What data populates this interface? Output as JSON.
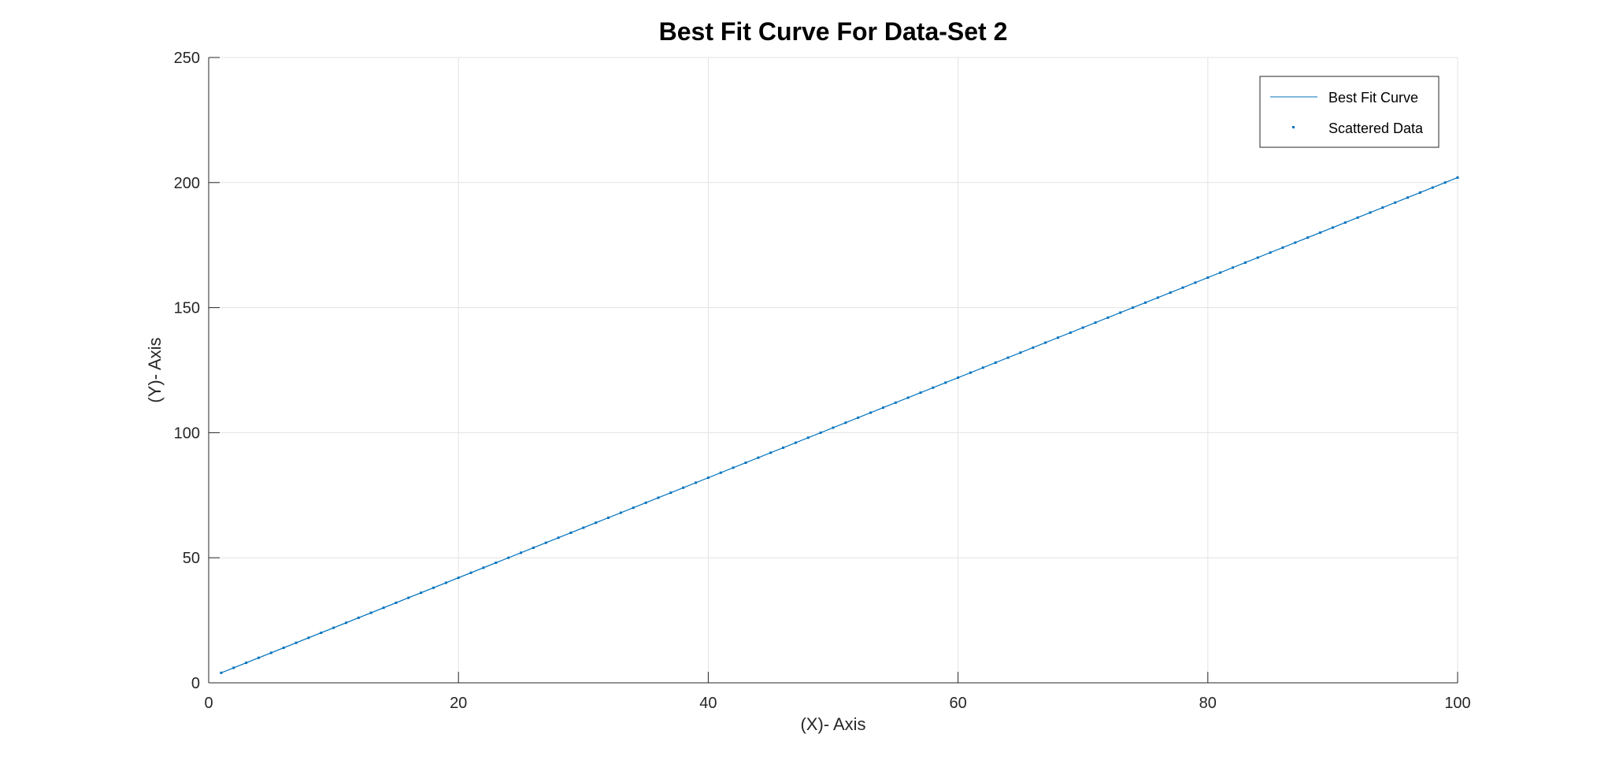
{
  "chart_data": {
    "type": "line",
    "title": "Best Fit Curve For Data-Set 2",
    "xlabel": "(X)-  Axis",
    "ylabel": "(Y)-  Axis",
    "xlim": [
      0,
      100
    ],
    "ylim": [
      0,
      250
    ],
    "xticks": [
      0,
      20,
      40,
      60,
      80,
      100
    ],
    "yticks": [
      0,
      50,
      100,
      150,
      200,
      250
    ],
    "xtick_labels": [
      "0",
      "20",
      "40",
      "60",
      "80",
      "100"
    ],
    "ytick_labels": [
      "0",
      "50",
      "100",
      "150",
      "200",
      "250"
    ],
    "grid": true,
    "legend_position": "top-right",
    "series": [
      {
        "name": "Best Fit Curve",
        "style": "line",
        "color": "#0072BD",
        "x": [
          1,
          100
        ],
        "y": [
          4,
          202
        ]
      },
      {
        "name": "Scattered Data",
        "style": "markers",
        "color": "#0072BD",
        "x": [
          1,
          2,
          3,
          4,
          5,
          6,
          7,
          8,
          9,
          10,
          11,
          12,
          13,
          14,
          15,
          16,
          17,
          18,
          19,
          20,
          21,
          22,
          23,
          24,
          25,
          26,
          27,
          28,
          29,
          30,
          31,
          32,
          33,
          34,
          35,
          36,
          37,
          38,
          39,
          40,
          41,
          42,
          43,
          44,
          45,
          46,
          47,
          48,
          49,
          50,
          51,
          52,
          53,
          54,
          55,
          56,
          57,
          58,
          59,
          60,
          61,
          62,
          63,
          64,
          65,
          66,
          67,
          68,
          69,
          70,
          71,
          72,
          73,
          74,
          75,
          76,
          77,
          78,
          79,
          80,
          81,
          82,
          83,
          84,
          85,
          86,
          87,
          88,
          89,
          90,
          91,
          92,
          93,
          94,
          95,
          96,
          97,
          98,
          99,
          100
        ],
        "y": [
          4,
          6,
          8,
          10,
          12,
          14,
          16,
          18,
          20,
          22,
          24,
          26,
          28,
          30,
          32,
          34,
          36,
          38,
          40,
          42,
          44,
          46,
          48,
          50,
          52,
          54,
          56,
          58,
          60,
          62,
          64,
          66,
          68,
          70,
          72,
          74,
          76,
          78,
          80,
          82,
          84,
          86,
          88,
          90,
          92,
          94,
          96,
          98,
          100,
          102,
          104,
          106,
          108,
          110,
          112,
          114,
          116,
          118,
          120,
          122,
          124,
          126,
          128,
          130,
          132,
          134,
          136,
          138,
          140,
          142,
          144,
          146,
          148,
          150,
          152,
          154,
          156,
          158,
          160,
          162,
          164,
          166,
          168,
          170,
          172,
          174,
          176,
          178,
          180,
          182,
          184,
          186,
          188,
          190,
          192,
          194,
          196,
          198,
          200,
          202
        ]
      }
    ]
  }
}
